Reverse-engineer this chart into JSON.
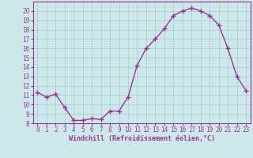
{
  "x": [
    0,
    1,
    2,
    3,
    4,
    5,
    6,
    7,
    8,
    9,
    10,
    11,
    12,
    13,
    14,
    15,
    16,
    17,
    18,
    19,
    20,
    21,
    22,
    23
  ],
  "y": [
    11.3,
    10.8,
    11.1,
    9.7,
    8.3,
    8.3,
    8.5,
    8.4,
    9.3,
    9.3,
    10.8,
    14.2,
    16.0,
    17.0,
    18.1,
    19.5,
    20.0,
    20.3,
    20.0,
    19.5,
    18.5,
    16.0,
    13.0,
    11.5
  ],
  "line_color": "#993399",
  "marker": "+",
  "marker_size": 4.0,
  "bg_color": "#cce8e8",
  "grid_color": "#aacccc",
  "xlabel": "Windchill (Refroidissement éolien,°C)",
  "xlabel_color": "#993399",
  "tick_color": "#993399",
  "label_color": "#993399",
  "ylim": [
    8,
    21
  ],
  "xlim": [
    -0.5,
    23.5
  ],
  "yticks": [
    8,
    9,
    10,
    11,
    12,
    13,
    14,
    15,
    16,
    17,
    18,
    19,
    20
  ],
  "xticks": [
    0,
    1,
    2,
    3,
    4,
    5,
    6,
    7,
    8,
    9,
    10,
    11,
    12,
    13,
    14,
    15,
    16,
    17,
    18,
    19,
    20,
    21,
    22,
    23
  ],
  "linewidth": 1.0,
  "tick_fontsize": 5.5,
  "xlabel_fontsize": 6.0
}
